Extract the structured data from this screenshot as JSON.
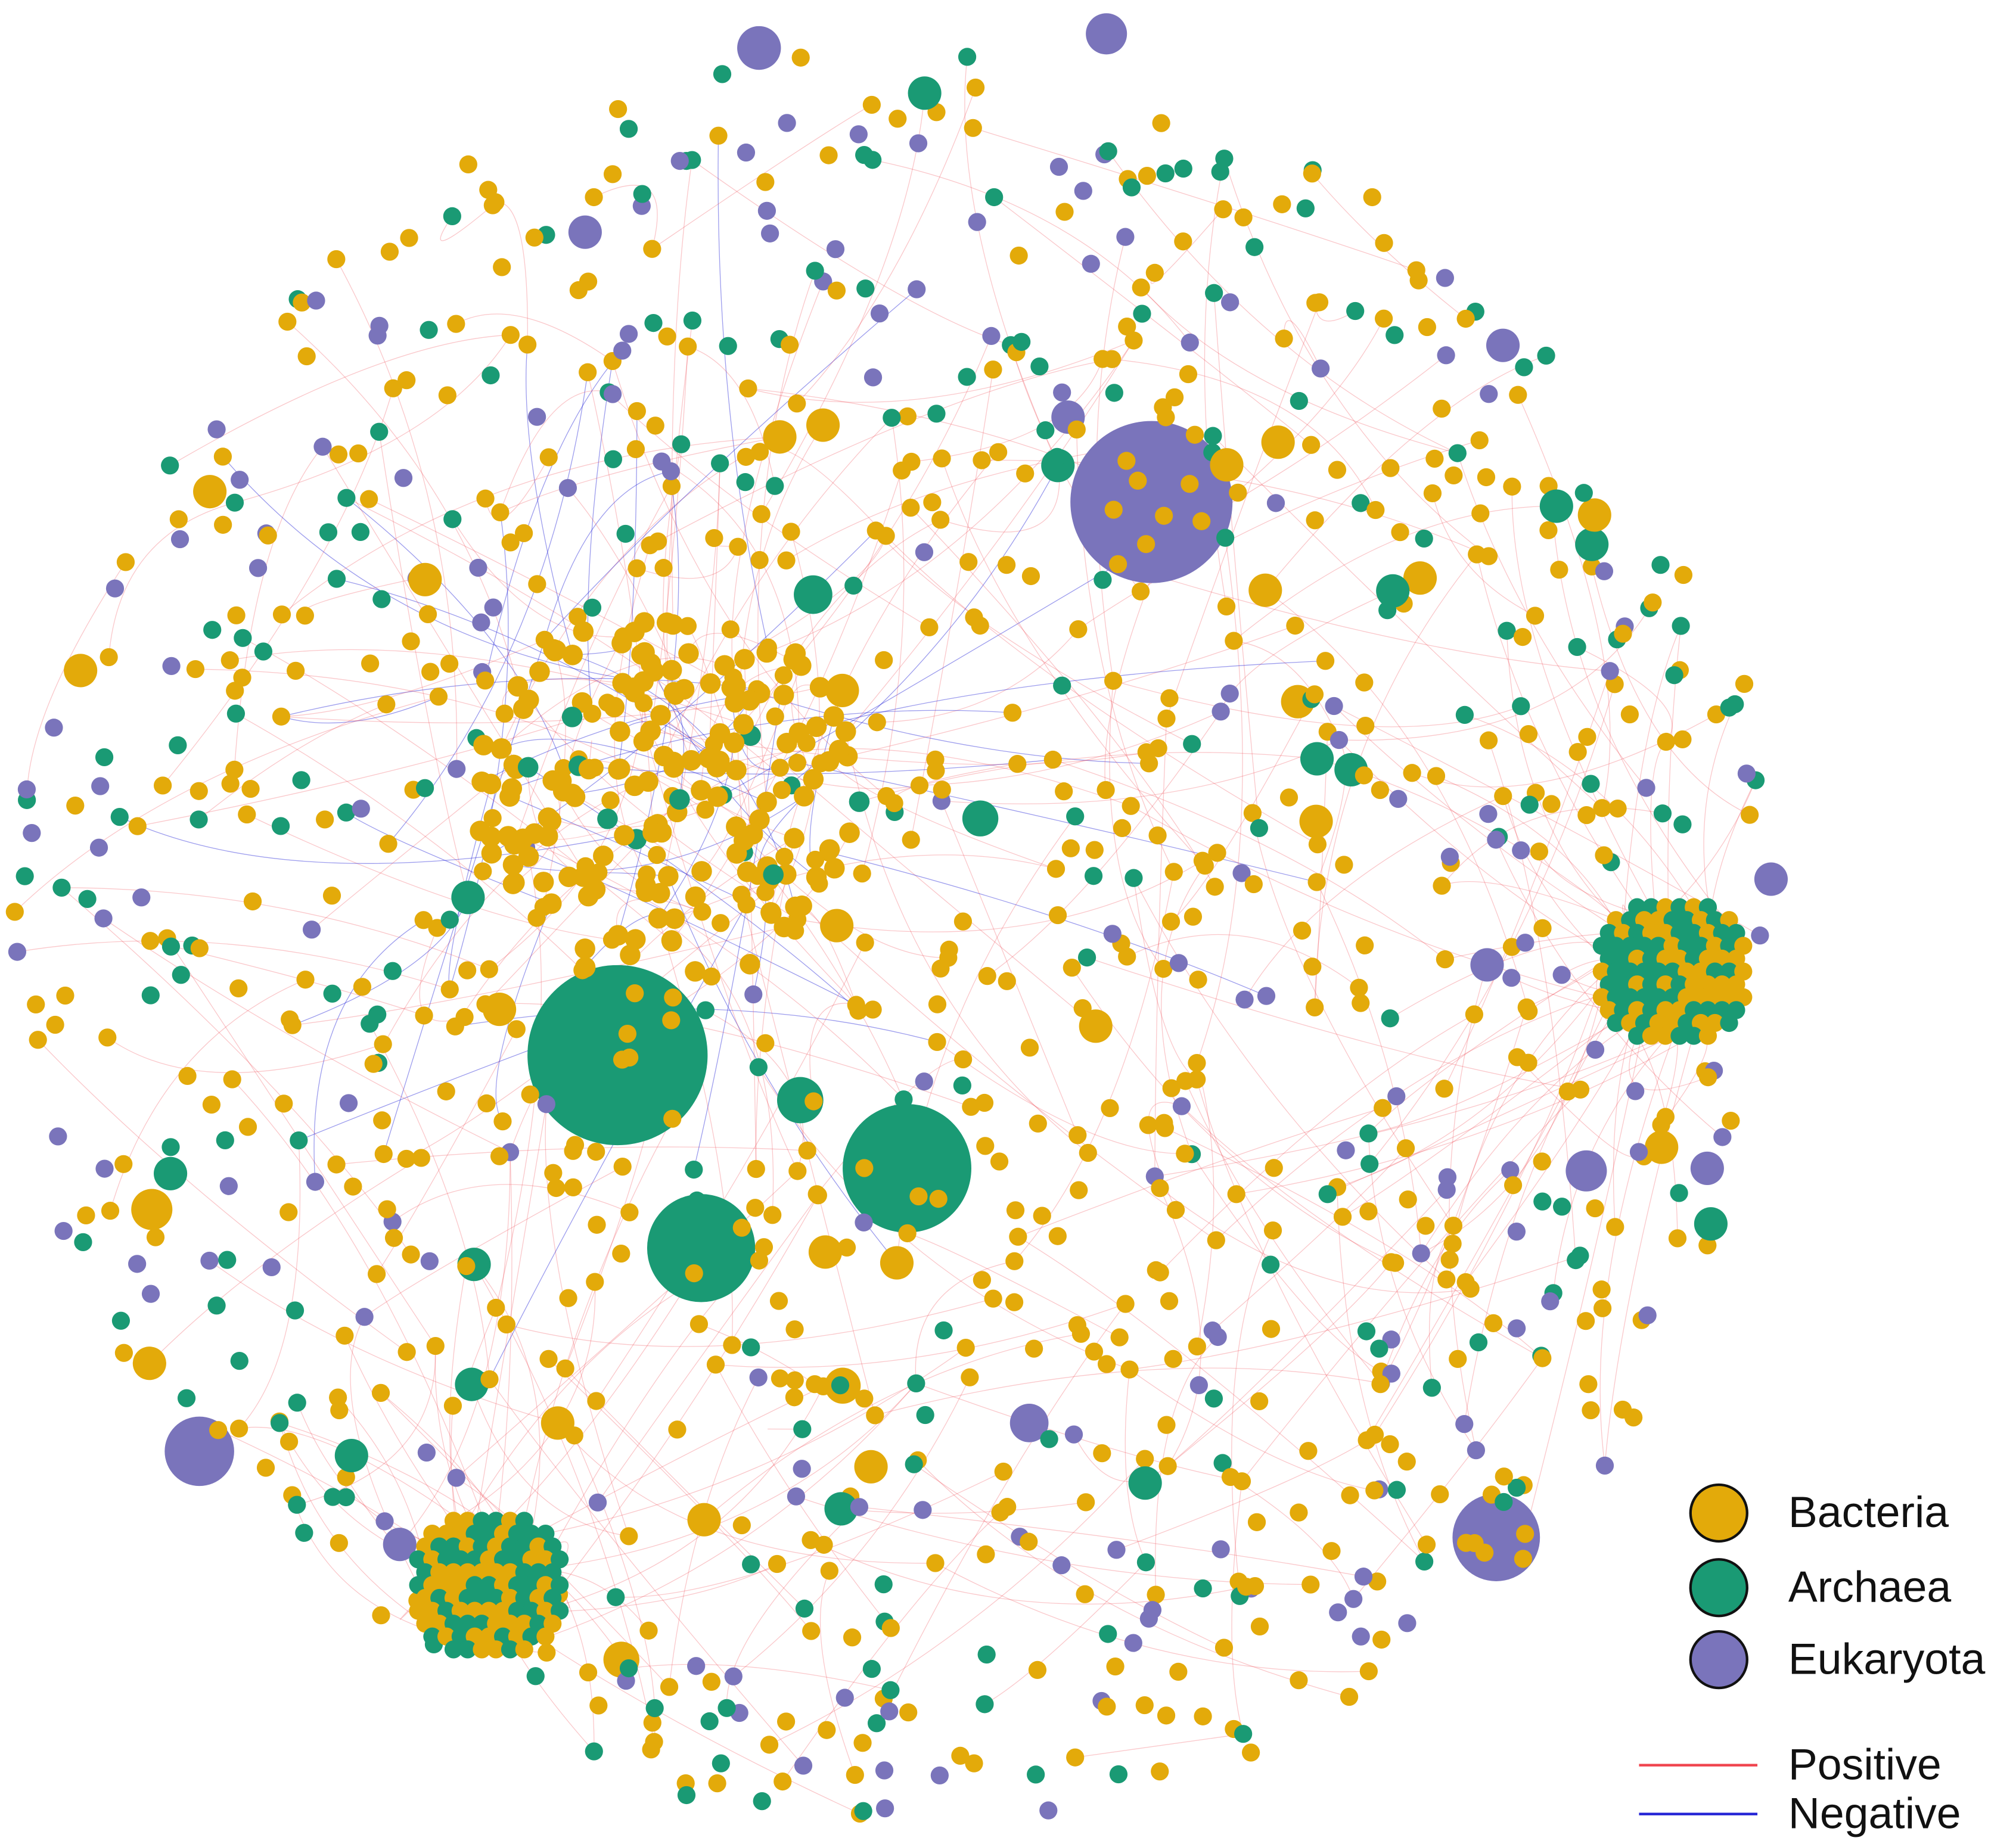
{
  "legend": {
    "nodes": [
      {
        "label": "Bacteria",
        "color": "#e3aa0a"
      },
      {
        "label": "Archaea",
        "color": "#1a9a74"
      },
      {
        "label": "Eukaryota",
        "color": "#7a74bb"
      }
    ],
    "edges": [
      {
        "label": "Positive",
        "color": "#f0444e"
      },
      {
        "label": "Negative",
        "color": "#2424d6"
      }
    ]
  }
}
